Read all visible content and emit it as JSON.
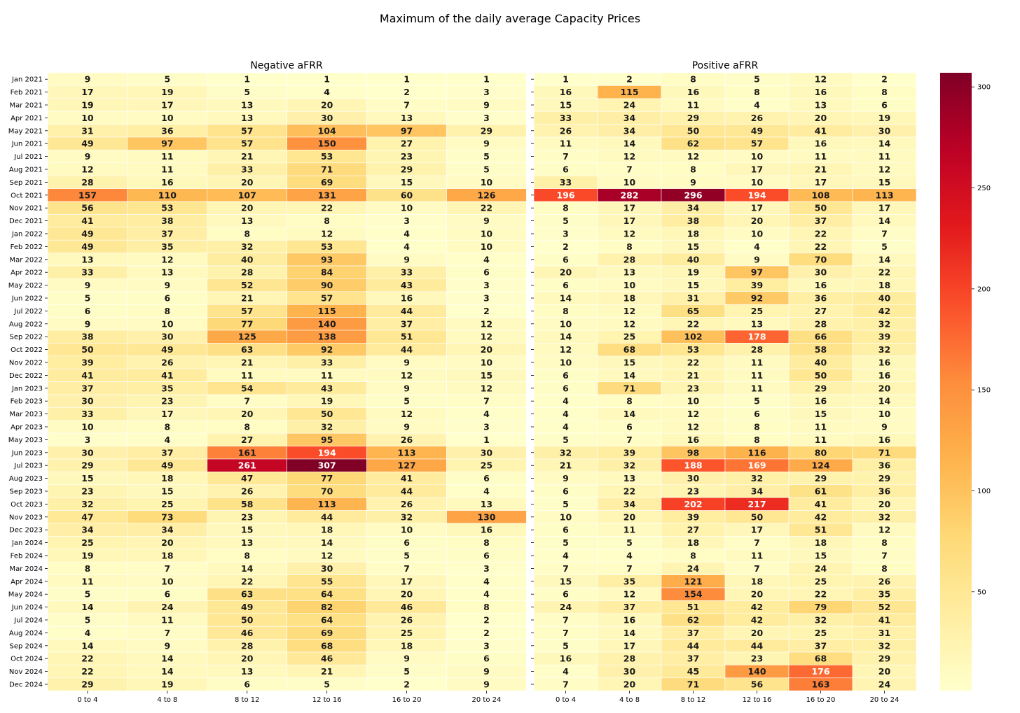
{
  "chart_data": {
    "type": "heatmap",
    "title": "Maximum of the daily average Capacity Prices",
    "rows": [
      "Jan 2021",
      "Feb 2021",
      "Mar 2021",
      "Apr 2021",
      "May 2021",
      "Jun 2021",
      "Jul 2021",
      "Aug 2021",
      "Sep 2021",
      "Oct 2021",
      "Nov 2021",
      "Dec 2021",
      "Jan 2022",
      "Feb 2022",
      "Mar 2022",
      "Apr 2022",
      "May 2022",
      "Jun 2022",
      "Jul 2022",
      "Aug 2022",
      "Sep 2022",
      "Oct 2022",
      "Nov 2022",
      "Dec 2022",
      "Jan 2023",
      "Feb 2023",
      "Mar 2023",
      "Apr 2023",
      "May 2023",
      "Jun 2023",
      "Jul 2023",
      "Aug 2023",
      "Sep 2023",
      "Oct 2023",
      "Nov 2023",
      "Dec 2023",
      "Jan 2024",
      "Feb 2024",
      "Mar 2024",
      "Apr 2024",
      "May 2024",
      "Jun 2024",
      "Jul 2024",
      "Aug 2024",
      "Sep 2024",
      "Oct 2024",
      "Nov 2024",
      "Dec 2024"
    ],
    "columns": [
      "0 to 4",
      "4 to 8",
      "8 to 12",
      "12 to 16",
      "16 to 20",
      "20 to 24"
    ],
    "panels": [
      {
        "name": "Negative aFRR",
        "values": [
          [
            9,
            5,
            1,
            1,
            1,
            1
          ],
          [
            17,
            19,
            5,
            4,
            2,
            3
          ],
          [
            19,
            17,
            13,
            20,
            7,
            9
          ],
          [
            10,
            10,
            13,
            30,
            13,
            3
          ],
          [
            31,
            36,
            57,
            104,
            97,
            29
          ],
          [
            49,
            97,
            57,
            150,
            27,
            9
          ],
          [
            9,
            11,
            21,
            53,
            23,
            5
          ],
          [
            12,
            11,
            33,
            71,
            29,
            5
          ],
          [
            28,
            16,
            20,
            69,
            15,
            10
          ],
          [
            157,
            110,
            107,
            131,
            60,
            126
          ],
          [
            56,
            53,
            20,
            22,
            10,
            22
          ],
          [
            41,
            38,
            13,
            8,
            3,
            9
          ],
          [
            49,
            37,
            8,
            12,
            4,
            10
          ],
          [
            49,
            35,
            32,
            53,
            4,
            10
          ],
          [
            13,
            12,
            40,
            93,
            9,
            4
          ],
          [
            33,
            13,
            28,
            84,
            33,
            6
          ],
          [
            9,
            9,
            52,
            90,
            43,
            3
          ],
          [
            5,
            6,
            21,
            57,
            16,
            3
          ],
          [
            6,
            8,
            57,
            115,
            44,
            2
          ],
          [
            9,
            10,
            77,
            140,
            37,
            12
          ],
          [
            38,
            30,
            125,
            138,
            51,
            12
          ],
          [
            50,
            49,
            63,
            92,
            44,
            20
          ],
          [
            39,
            26,
            21,
            33,
            9,
            10
          ],
          [
            41,
            41,
            11,
            11,
            12,
            15
          ],
          [
            37,
            35,
            54,
            43,
            9,
            12
          ],
          [
            30,
            23,
            7,
            19,
            5,
            7
          ],
          [
            33,
            17,
            20,
            50,
            12,
            4
          ],
          [
            10,
            8,
            8,
            32,
            9,
            3
          ],
          [
            3,
            4,
            27,
            95,
            26,
            1
          ],
          [
            30,
            37,
            161,
            194,
            113,
            30
          ],
          [
            29,
            49,
            261,
            307,
            127,
            25
          ],
          [
            15,
            18,
            47,
            77,
            41,
            6
          ],
          [
            23,
            15,
            26,
            70,
            44,
            4
          ],
          [
            32,
            25,
            58,
            113,
            26,
            13
          ],
          [
            47,
            73,
            23,
            44,
            32,
            130
          ],
          [
            34,
            34,
            15,
            18,
            10,
            16
          ],
          [
            25,
            20,
            13,
            14,
            6,
            8
          ],
          [
            19,
            18,
            8,
            12,
            5,
            6
          ],
          [
            8,
            7,
            14,
            30,
            7,
            3
          ],
          [
            11,
            10,
            22,
            55,
            17,
            4
          ],
          [
            5,
            6,
            63,
            64,
            20,
            4
          ],
          [
            14,
            24,
            49,
            82,
            46,
            8
          ],
          [
            5,
            11,
            50,
            64,
            26,
            2
          ],
          [
            4,
            7,
            46,
            69,
            25,
            2
          ],
          [
            14,
            9,
            28,
            68,
            18,
            3
          ],
          [
            22,
            14,
            20,
            46,
            9,
            6
          ],
          [
            22,
            14,
            13,
            21,
            5,
            9
          ],
          [
            29,
            19,
            6,
            5,
            2,
            9
          ]
        ]
      },
      {
        "name": "Positive aFRR",
        "values": [
          [
            1,
            2,
            8,
            5,
            12,
            2
          ],
          [
            16,
            115,
            16,
            8,
            16,
            8
          ],
          [
            15,
            24,
            11,
            4,
            13,
            6
          ],
          [
            33,
            34,
            29,
            26,
            20,
            19
          ],
          [
            26,
            34,
            50,
            49,
            41,
            30
          ],
          [
            11,
            14,
            62,
            57,
            16,
            14
          ],
          [
            7,
            12,
            12,
            10,
            11,
            11
          ],
          [
            6,
            7,
            8,
            17,
            21,
            12
          ],
          [
            33,
            10,
            9,
            10,
            17,
            15
          ],
          [
            196,
            282,
            296,
            194,
            108,
            113
          ],
          [
            8,
            17,
            34,
            17,
            50,
            17
          ],
          [
            5,
            17,
            38,
            20,
            37,
            14
          ],
          [
            3,
            12,
            18,
            10,
            22,
            7
          ],
          [
            2,
            8,
            15,
            4,
            22,
            5
          ],
          [
            6,
            28,
            40,
            9,
            70,
            14
          ],
          [
            20,
            13,
            19,
            97,
            30,
            22
          ],
          [
            6,
            10,
            15,
            39,
            16,
            18
          ],
          [
            14,
            18,
            31,
            92,
            36,
            40
          ],
          [
            8,
            12,
            65,
            25,
            27,
            42
          ],
          [
            10,
            12,
            22,
            13,
            28,
            32
          ],
          [
            14,
            25,
            102,
            178,
            66,
            39
          ],
          [
            12,
            68,
            53,
            28,
            58,
            32
          ],
          [
            10,
            15,
            22,
            11,
            40,
            16
          ],
          [
            6,
            14,
            21,
            11,
            50,
            16
          ],
          [
            6,
            71,
            23,
            11,
            29,
            20
          ],
          [
            4,
            8,
            10,
            5,
            16,
            14
          ],
          [
            4,
            14,
            12,
            6,
            15,
            10
          ],
          [
            4,
            6,
            12,
            8,
            11,
            9
          ],
          [
            5,
            7,
            16,
            8,
            11,
            16
          ],
          [
            32,
            39,
            98,
            116,
            80,
            71
          ],
          [
            21,
            32,
            188,
            169,
            124,
            36
          ],
          [
            9,
            13,
            30,
            32,
            29,
            29
          ],
          [
            6,
            22,
            23,
            34,
            61,
            36
          ],
          [
            5,
            34,
            202,
            217,
            41,
            20
          ],
          [
            10,
            20,
            39,
            50,
            42,
            32
          ],
          [
            6,
            11,
            27,
            17,
            51,
            12
          ],
          [
            5,
            5,
            18,
            7,
            18,
            8
          ],
          [
            4,
            4,
            8,
            11,
            15,
            7
          ],
          [
            7,
            7,
            24,
            7,
            24,
            8
          ],
          [
            15,
            35,
            121,
            18,
            25,
            26
          ],
          [
            6,
            12,
            154,
            20,
            22,
            35
          ],
          [
            24,
            37,
            51,
            42,
            79,
            52
          ],
          [
            7,
            16,
            62,
            42,
            32,
            41
          ],
          [
            7,
            14,
            37,
            20,
            25,
            31
          ],
          [
            5,
            17,
            44,
            44,
            37,
            32
          ],
          [
            16,
            28,
            37,
            23,
            68,
            29
          ],
          [
            4,
            30,
            45,
            140,
            176,
            20
          ],
          [
            7,
            20,
            71,
            56,
            163,
            24
          ]
        ]
      }
    ],
    "colorbar": {
      "colormap": "YlOrRd",
      "vmin": 1,
      "vmax": 307,
      "ticks": [
        50,
        100,
        150,
        200,
        250,
        300
      ]
    },
    "legend": "right"
  }
}
